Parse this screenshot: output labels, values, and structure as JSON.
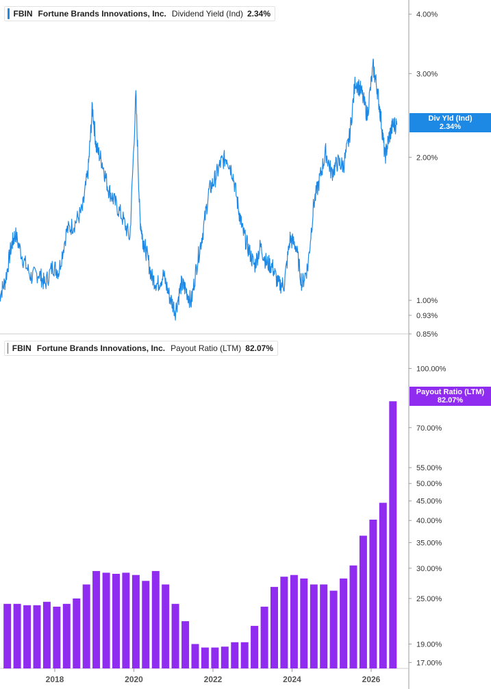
{
  "colors": {
    "yield": "#1e88e5",
    "payout": "#8f2cf0",
    "axis": "#999999"
  },
  "legend_top": {
    "ticker": "FBIN",
    "company": "Fortune Brands Innovations, Inc.",
    "metric": "Dividend Yield (Ind)",
    "value": "2.34%"
  },
  "legend_bottom": {
    "ticker": "FBIN",
    "company": "Fortune Brands Innovations, Inc.",
    "metric": "Payout Ratio (LTM)",
    "value": "82.07%"
  },
  "tag_top": {
    "label": "Div Yld (Ind)",
    "value": "2.34%"
  },
  "tag_bottom": {
    "label": "Payout Ratio (LTM)",
    "value": "82.07%"
  },
  "chart_data": [
    {
      "type": "line",
      "title": "",
      "series": [
        {
          "name": "Dividend Yield (Ind)"
        }
      ],
      "y_scale": "log",
      "ylim": [
        0.85,
        4.2
      ],
      "y_ticks": [
        "4.00%",
        "3.00%",
        "2.00%",
        "1.00%",
        "0.93%",
        "0.85%"
      ],
      "y_tick_values": [
        4.0,
        3.0,
        2.0,
        1.0,
        0.93,
        0.85
      ],
      "x": [
        2016.6,
        2016.75,
        2016.9,
        2017.0,
        2017.2,
        2017.4,
        2017.6,
        2017.75,
        2017.95,
        2018.1,
        2018.3,
        2018.5,
        2018.7,
        2018.85,
        2018.95,
        2019.05,
        2019.2,
        2019.35,
        2019.5,
        2019.7,
        2019.9,
        2020.05,
        2020.15,
        2020.22,
        2020.3,
        2020.45,
        2020.6,
        2020.75,
        2020.9,
        2021.05,
        2021.2,
        2021.3,
        2021.45,
        2021.6,
        2021.75,
        2021.9,
        2022.05,
        2022.2,
        2022.35,
        2022.5,
        2022.65,
        2022.75,
        2022.9,
        2023.05,
        2023.2,
        2023.35,
        2023.5,
        2023.65,
        2023.8,
        2023.95,
        2024.1,
        2024.25,
        2024.4,
        2024.55,
        2024.7,
        2024.85,
        2025.0,
        2025.15,
        2025.3,
        2025.45,
        2025.6,
        2025.75,
        2025.9,
        2026.05,
        2026.15,
        2026.25,
        2026.35,
        2026.45,
        2026.55,
        2026.65
      ],
      "y": [
        1.02,
        1.1,
        1.3,
        1.38,
        1.22,
        1.12,
        1.14,
        1.08,
        1.18,
        1.15,
        1.4,
        1.45,
        1.55,
        1.9,
        2.55,
        2.1,
        1.95,
        1.72,
        1.62,
        1.5,
        1.35,
        2.7,
        1.5,
        1.35,
        1.28,
        1.12,
        1.08,
        1.13,
        1.02,
        0.95,
        1.08,
        1.06,
        0.99,
        1.2,
        1.4,
        1.7,
        1.8,
        1.95,
        2.0,
        1.85,
        1.55,
        1.4,
        1.28,
        1.18,
        1.3,
        1.2,
        1.18,
        1.08,
        1.08,
        1.35,
        1.3,
        1.08,
        1.18,
        1.6,
        1.8,
        2.05,
        1.85,
        1.95,
        1.92,
        2.2,
        2.9,
        2.75,
        2.45,
        3.1,
        2.8,
        2.4,
        2.0,
        2.2,
        2.34,
        2.34
      ]
    },
    {
      "type": "bar",
      "title": "",
      "series": [
        {
          "name": "Payout Ratio (LTM)"
        }
      ],
      "y_scale": "log",
      "ylim": [
        16.4,
        112
      ],
      "y_ticks": [
        "100.00%",
        "70.00%",
        "55.00%",
        "50.00%",
        "45.00%",
        "40.00%",
        "35.00%",
        "30.00%",
        "25.00%",
        "19.00%",
        "17.00%"
      ],
      "y_tick_values": [
        100,
        70,
        55,
        50,
        45,
        40,
        35,
        30,
        25,
        19,
        17
      ],
      "x": [
        2016.8,
        2017.05,
        2017.3,
        2017.55,
        2017.8,
        2018.05,
        2018.3,
        2018.55,
        2018.8,
        2019.05,
        2019.3,
        2019.55,
        2019.8,
        2020.05,
        2020.3,
        2020.55,
        2020.8,
        2021.05,
        2021.3,
        2021.55,
        2021.8,
        2022.05,
        2022.3,
        2022.55,
        2022.8,
        2023.05,
        2023.3,
        2023.55,
        2023.8,
        2024.05,
        2024.3,
        2024.55,
        2024.8,
        2025.05,
        2025.3,
        2025.55,
        2025.8,
        2026.05,
        2026.3,
        2026.55
      ],
      "values": [
        24.2,
        24.2,
        24.0,
        24.0,
        24.5,
        23.8,
        24.2,
        25.0,
        27.2,
        29.5,
        29.2,
        29.0,
        29.2,
        28.8,
        27.8,
        29.5,
        27.2,
        24.2,
        21.8,
        19.0,
        18.6,
        18.6,
        18.7,
        19.2,
        19.2,
        21.2,
        23.8,
        26.8,
        28.5,
        28.8,
        28.2,
        27.2,
        27.2,
        26.2,
        28.2,
        30.5,
        36.5,
        40.2,
        44.5,
        82.07
      ],
      "x_ticks": [
        "2018",
        "2020",
        "2022",
        "2024",
        "2026"
      ],
      "x_tick_values": [
        2018,
        2020,
        2022,
        2024,
        2026
      ]
    }
  ]
}
